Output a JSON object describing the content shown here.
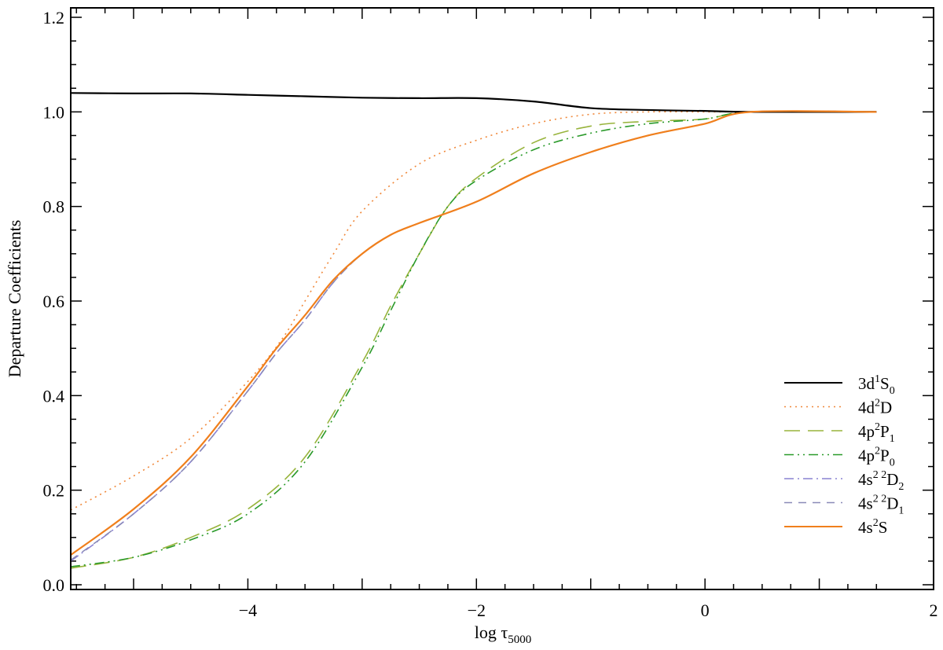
{
  "chart_data": {
    "type": "line",
    "title": "",
    "xlabel": {
      "main": "log τ",
      "sub": "5000"
    },
    "ylabel": "Departure Coefficients",
    "xlim": [
      -5.55,
      2.0
    ],
    "ylim": [
      -0.01,
      1.22
    ],
    "x_ticks": [
      -4,
      -2,
      0,
      2
    ],
    "x_tick_labels": [
      "−4",
      "−2",
      "0",
      "2"
    ],
    "y_ticks": [
      0.0,
      0.2,
      0.4,
      0.6,
      0.8,
      1.0,
      1.2
    ],
    "y_tick_labels": [
      "0.0",
      "0.2",
      "0.4",
      "0.6",
      "0.8",
      "1.0",
      "1.2"
    ],
    "grid": false,
    "legend_position": "bottom-right",
    "series": [
      {
        "id": "s1",
        "label": {
          "base": "3d",
          "sup": "1",
          "term": "S",
          "sub": "0"
        },
        "color": "#000000",
        "dash": "solid",
        "x": [
          -5.55,
          -5.0,
          -4.5,
          -4.0,
          -3.5,
          -3.0,
          -2.5,
          -2.0,
          -1.5,
          -1.0,
          -0.5,
          0.0,
          0.4,
          1.5
        ],
        "y": [
          1.04,
          1.039,
          1.039,
          1.036,
          1.033,
          1.03,
          1.029,
          1.029,
          1.022,
          1.008,
          1.004,
          1.002,
          1.0,
          1.0
        ]
      },
      {
        "id": "s2",
        "label": {
          "base": "4d",
          "sup": "2",
          "term": "D",
          "sub": ""
        },
        "color": "#f0883a",
        "dash": "dotted",
        "x": [
          -5.55,
          -5.0,
          -4.5,
          -4.0,
          -3.7,
          -3.5,
          -3.25,
          -3.0,
          -2.5,
          -2.0,
          -1.5,
          -1.0,
          -0.5,
          0.0,
          0.4,
          1.5
        ],
        "y": [
          0.158,
          0.23,
          0.31,
          0.43,
          0.52,
          0.6,
          0.7,
          0.79,
          0.89,
          0.94,
          0.975,
          0.995,
          1.0,
          1.0,
          1.0,
          1.0
        ]
      },
      {
        "id": "s3",
        "label": {
          "base": "4p",
          "sup": "2",
          "term": "P",
          "sub": "1"
        },
        "color": "#98b43c",
        "dash": "longdash",
        "x": [
          -5.55,
          -5.0,
          -4.5,
          -4.0,
          -3.5,
          -3.0,
          -2.75,
          -2.5,
          -2.25,
          -2.0,
          -1.5,
          -1.0,
          -0.5,
          0.0,
          0.4,
          1.5
        ],
        "y": [
          0.035,
          0.058,
          0.1,
          0.16,
          0.27,
          0.47,
          0.59,
          0.7,
          0.8,
          0.86,
          0.935,
          0.97,
          0.98,
          0.985,
          1.0,
          1.0
        ]
      },
      {
        "id": "s4",
        "label": {
          "base": "4p",
          "sup": "2",
          "term": "P",
          "sub": "0"
        },
        "color": "#2a9a2a",
        "dash": "dashdotdot",
        "x": [
          -5.55,
          -5.0,
          -4.5,
          -4.0,
          -3.5,
          -3.0,
          -2.75,
          -2.5,
          -2.25,
          -2.0,
          -1.5,
          -1.0,
          -0.5,
          0.0,
          0.4,
          1.5
        ],
        "y": [
          0.038,
          0.058,
          0.095,
          0.15,
          0.26,
          0.46,
          0.58,
          0.7,
          0.8,
          0.855,
          0.92,
          0.955,
          0.975,
          0.985,
          1.0,
          1.0
        ]
      },
      {
        "id": "s5",
        "label": {
          "base": "4s",
          "sup": "2 2",
          "term": "D",
          "sub": "2"
        },
        "color": "#8a82d2",
        "dash": "dashdot",
        "x": [
          -5.55,
          -5.0,
          -4.5,
          -4.0,
          -3.75,
          -3.5,
          -3.25,
          -3.0,
          -2.75,
          -2.5,
          -2.0,
          -1.5,
          -1.0,
          -0.5,
          0.0,
          0.4,
          1.5
        ],
        "y": [
          0.05,
          0.15,
          0.26,
          0.41,
          0.49,
          0.56,
          0.64,
          0.7,
          0.74,
          0.765,
          0.81,
          0.87,
          0.915,
          0.95,
          0.975,
          1.0,
          1.0
        ]
      },
      {
        "id": "s6",
        "label": {
          "base": "4s",
          "sup": "2 2",
          "term": "D",
          "sub": "1"
        },
        "color": "#8a8ab8",
        "dash": "dashed",
        "x": [
          -5.55,
          -5.0,
          -4.5,
          -4.0,
          -3.75,
          -3.5,
          -3.25,
          -3.0,
          -2.75,
          -2.5,
          -2.0,
          -1.5,
          -1.0,
          -0.5,
          0.0,
          0.4,
          1.5
        ],
        "y": [
          0.052,
          0.15,
          0.26,
          0.41,
          0.49,
          0.56,
          0.64,
          0.7,
          0.74,
          0.765,
          0.81,
          0.87,
          0.915,
          0.95,
          0.975,
          1.0,
          1.0
        ]
      },
      {
        "id": "s7",
        "label": {
          "base": "4s",
          "sup": "2",
          "term": "S",
          "sub": ""
        },
        "color": "#f07f1c",
        "dash": "solid",
        "x": [
          -5.55,
          -5.0,
          -4.5,
          -4.0,
          -3.75,
          -3.5,
          -3.25,
          -3.0,
          -2.75,
          -2.5,
          -2.0,
          -1.5,
          -1.0,
          -0.5,
          0.0,
          0.4,
          1.5
        ],
        "y": [
          0.063,
          0.16,
          0.27,
          0.42,
          0.5,
          0.57,
          0.645,
          0.7,
          0.74,
          0.765,
          0.81,
          0.87,
          0.915,
          0.95,
          0.975,
          1.0,
          1.0
        ]
      }
    ]
  }
}
